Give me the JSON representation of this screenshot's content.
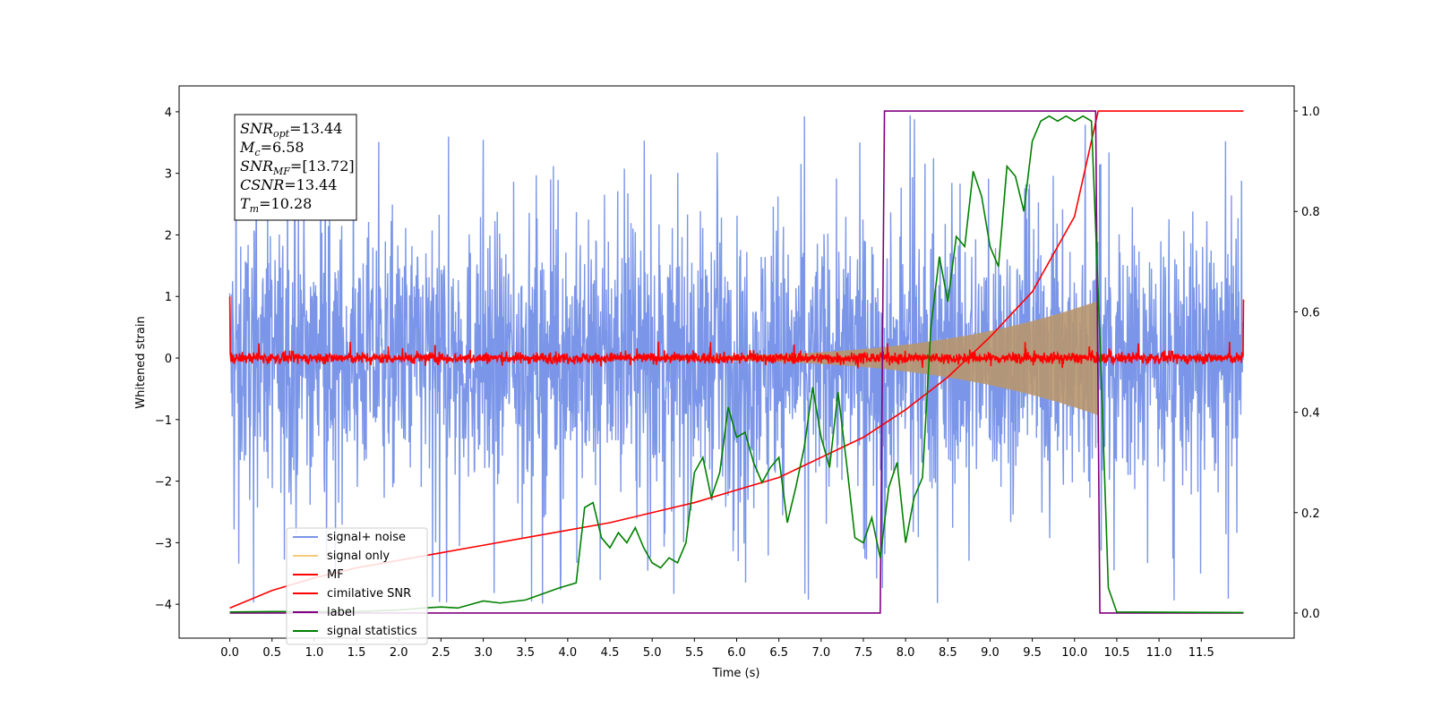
{
  "chart_data": {
    "type": "line",
    "xlabel": "Time (s)",
    "ylabel": "Whitened strain",
    "xlim": [
      -0.6,
      12.6
    ],
    "ylim": [
      -4.55,
      4.42
    ],
    "y2lim": [
      -0.05,
      1.05
    ],
    "x_ticks": [
      0.0,
      0.5,
      1.0,
      1.5,
      2.0,
      2.5,
      3.0,
      3.5,
      4.0,
      4.5,
      5.0,
      5.5,
      6.0,
      6.5,
      7.0,
      7.5,
      8.0,
      8.5,
      9.0,
      9.5,
      10.0,
      10.5,
      11.0,
      11.5
    ],
    "x_tick_labels": [
      "0.0",
      "0.5",
      "1.0",
      "1.5",
      "2.0",
      "2.5",
      "3.0",
      "3.5",
      "4.0",
      "4.5",
      "5.0",
      "5.5",
      "6.0",
      "6.5",
      "7.0",
      "7.5",
      "8.0",
      "8.5",
      "9.0",
      "9.5",
      "10.0",
      "10.5",
      "11.0",
      "11.5"
    ],
    "y_ticks": [
      4,
      3,
      2,
      1,
      0,
      -1,
      -2,
      -3,
      -4
    ],
    "y_tick_labels": [
      "4",
      "3",
      "2",
      "1",
      "0",
      "−1",
      "−2",
      "−3",
      "−4"
    ],
    "y2_ticks": [
      1.0,
      0.8,
      0.6,
      0.4,
      0.2,
      0.0
    ],
    "y2_tick_labels": [
      "1.0",
      "0.8",
      "0.6",
      "0.4",
      "0.2",
      "0.0"
    ],
    "legend_position": "lower-left",
    "grid": false,
    "info_box": {
      "position": "top-left",
      "lines": [
        {
          "base": "SNR",
          "sub": "opt",
          "value": "=13.44"
        },
        {
          "base": "M",
          "sub": "c",
          "value": "=6.58"
        },
        {
          "base": "SNR",
          "sub": "MF",
          "value": "=[13.72]"
        },
        {
          "base": "CSNR",
          "sub": "",
          "value": "=13.44"
        },
        {
          "base": "T",
          "sub": "m",
          "value": "=10.28"
        }
      ]
    },
    "series": [
      {
        "name": "signal+ noise",
        "color": "#7b96e8",
        "axis": "left",
        "kind": "noise",
        "t_range": [
          0.0,
          12.0
        ],
        "approx_peak_amplitude": 4.0,
        "typical_envelope": 2.4
      },
      {
        "name": "signal only",
        "color": "#f5c97a",
        "axis": "left",
        "kind": "chirp",
        "t_range": [
          0.0,
          10.28
        ],
        "amplitude_at_end": 0.9
      },
      {
        "name": "MF",
        "color": "#ff0000",
        "axis": "left",
        "kind": "mf_noise",
        "t_range": [
          0.0,
          12.0
        ],
        "typical_amplitude": 0.1,
        "edge_values": [
          1.0,
          0.95
        ]
      },
      {
        "name": "cimilative SNR",
        "color": "#ff0000",
        "axis": "right",
        "points": [
          [
            0.0,
            0.01
          ],
          [
            0.5,
            0.045
          ],
          [
            1.0,
            0.07
          ],
          [
            1.5,
            0.09
          ],
          [
            2.0,
            0.105
          ],
          [
            2.5,
            0.12
          ],
          [
            3.0,
            0.135
          ],
          [
            3.5,
            0.15
          ],
          [
            4.0,
            0.165
          ],
          [
            4.5,
            0.18
          ],
          [
            5.0,
            0.2
          ],
          [
            5.5,
            0.22
          ],
          [
            6.0,
            0.245
          ],
          [
            6.5,
            0.27
          ],
          [
            7.0,
            0.31
          ],
          [
            7.5,
            0.35
          ],
          [
            8.0,
            0.405
          ],
          [
            8.5,
            0.47
          ],
          [
            9.0,
            0.55
          ],
          [
            9.5,
            0.64
          ],
          [
            10.0,
            0.79
          ],
          [
            10.28,
            1.0
          ],
          [
            12.0,
            1.0
          ]
        ]
      },
      {
        "name": "label",
        "color": "#800080",
        "axis": "right",
        "points": [
          [
            0.0,
            0.0
          ],
          [
            7.7,
            0.0
          ],
          [
            7.75,
            1.0
          ],
          [
            10.25,
            1.0
          ],
          [
            10.3,
            0.0
          ],
          [
            12.0,
            0.0
          ]
        ]
      },
      {
        "name": "signal statistics",
        "color": "#008000",
        "axis": "right",
        "points": [
          [
            0.0,
            0.002
          ],
          [
            0.5,
            0.003
          ],
          [
            1.0,
            0.003
          ],
          [
            1.5,
            0.003
          ],
          [
            2.0,
            0.006
          ],
          [
            2.3,
            0.01
          ],
          [
            2.5,
            0.012
          ],
          [
            2.7,
            0.01
          ],
          [
            3.0,
            0.024
          ],
          [
            3.2,
            0.02
          ],
          [
            3.5,
            0.026
          ],
          [
            3.7,
            0.038
          ],
          [
            3.9,
            0.05
          ],
          [
            4.1,
            0.06
          ],
          [
            4.2,
            0.21
          ],
          [
            4.3,
            0.22
          ],
          [
            4.4,
            0.15
          ],
          [
            4.5,
            0.13
          ],
          [
            4.6,
            0.16
          ],
          [
            4.7,
            0.14
          ],
          [
            4.8,
            0.17
          ],
          [
            4.9,
            0.13
          ],
          [
            5.0,
            0.1
          ],
          [
            5.1,
            0.09
          ],
          [
            5.2,
            0.11
          ],
          [
            5.3,
            0.1
          ],
          [
            5.4,
            0.14
          ],
          [
            5.5,
            0.28
          ],
          [
            5.6,
            0.31
          ],
          [
            5.7,
            0.23
          ],
          [
            5.8,
            0.28
          ],
          [
            5.9,
            0.41
          ],
          [
            6.0,
            0.35
          ],
          [
            6.1,
            0.36
          ],
          [
            6.2,
            0.3
          ],
          [
            6.3,
            0.26
          ],
          [
            6.4,
            0.29
          ],
          [
            6.5,
            0.31
          ],
          [
            6.6,
            0.18
          ],
          [
            6.7,
            0.25
          ],
          [
            6.8,
            0.33
          ],
          [
            6.9,
            0.45
          ],
          [
            7.0,
            0.35
          ],
          [
            7.1,
            0.29
          ],
          [
            7.2,
            0.44
          ],
          [
            7.3,
            0.3
          ],
          [
            7.4,
            0.15
          ],
          [
            7.5,
            0.14
          ],
          [
            7.6,
            0.19
          ],
          [
            7.7,
            0.11
          ],
          [
            7.8,
            0.25
          ],
          [
            7.9,
            0.3
          ],
          [
            8.0,
            0.14
          ],
          [
            8.1,
            0.23
          ],
          [
            8.2,
            0.27
          ],
          [
            8.3,
            0.57
          ],
          [
            8.4,
            0.71
          ],
          [
            8.5,
            0.62
          ],
          [
            8.6,
            0.75
          ],
          [
            8.7,
            0.73
          ],
          [
            8.8,
            0.88
          ],
          [
            8.9,
            0.83
          ],
          [
            9.0,
            0.73
          ],
          [
            9.1,
            0.69
          ],
          [
            9.2,
            0.89
          ],
          [
            9.3,
            0.87
          ],
          [
            9.4,
            0.8
          ],
          [
            9.5,
            0.94
          ],
          [
            9.6,
            0.98
          ],
          [
            9.7,
            0.99
          ],
          [
            9.8,
            0.98
          ],
          [
            9.9,
            0.99
          ],
          [
            10.0,
            0.98
          ],
          [
            10.1,
            0.99
          ],
          [
            10.2,
            0.98
          ],
          [
            10.3,
            0.55
          ],
          [
            10.4,
            0.05
          ],
          [
            10.5,
            0.002
          ],
          [
            12.0,
            0.001
          ]
        ]
      }
    ]
  }
}
